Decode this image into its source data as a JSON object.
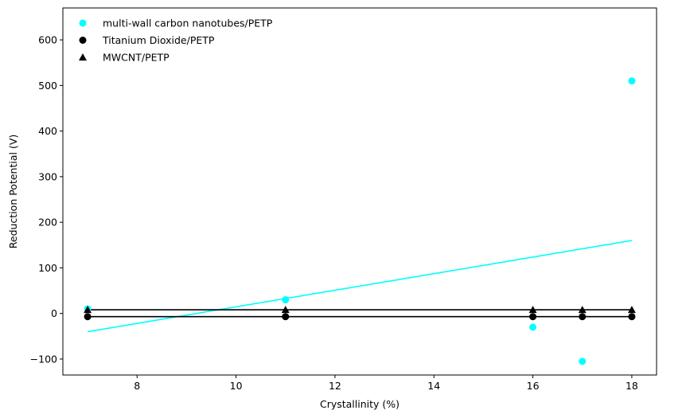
{
  "chart_data": {
    "type": "scatter",
    "title": "",
    "xlabel": "Crystallinity (%)",
    "ylabel": "Reduction Potential (V)",
    "xlim": [
      6.5,
      18.5
    ],
    "ylim": [
      -135,
      670
    ],
    "xticks": [
      8,
      10,
      12,
      14,
      16,
      18
    ],
    "yticks": [
      -100,
      0,
      100,
      200,
      300,
      400,
      500,
      600
    ],
    "ytick_labels": [
      "−100",
      "0",
      "100",
      "200",
      "300",
      "400",
      "500",
      "600"
    ],
    "grid": false,
    "legend_position": "top-left",
    "series": [
      {
        "name": "multi-wall carbon nanotubes/PETP",
        "marker": "circle",
        "color": "#00ffff",
        "x": [
          7,
          11,
          16,
          17,
          18
        ],
        "y": [
          10,
          30,
          -30,
          -105,
          510
        ],
        "trendline": {
          "x": [
            7,
            18
          ],
          "y": [
            -40,
            160
          ]
        }
      },
      {
        "name": "Titanium Dioxide/PETP",
        "marker": "circle",
        "color": "#000000",
        "x": [
          7,
          11,
          16,
          17,
          18
        ],
        "y": [
          -7,
          -7,
          -7,
          -7,
          -7
        ],
        "trendline": {
          "x": [
            7,
            18
          ],
          "y": [
            -7,
            -7
          ]
        }
      },
      {
        "name": "MWCNT/PETP",
        "marker": "triangle",
        "color": "#000000",
        "x": [
          7,
          11,
          16,
          17,
          18
        ],
        "y": [
          8,
          8,
          8,
          8,
          8
        ],
        "trendline": {
          "x": [
            7,
            18
          ],
          "y": [
            8,
            8
          ]
        }
      }
    ]
  }
}
